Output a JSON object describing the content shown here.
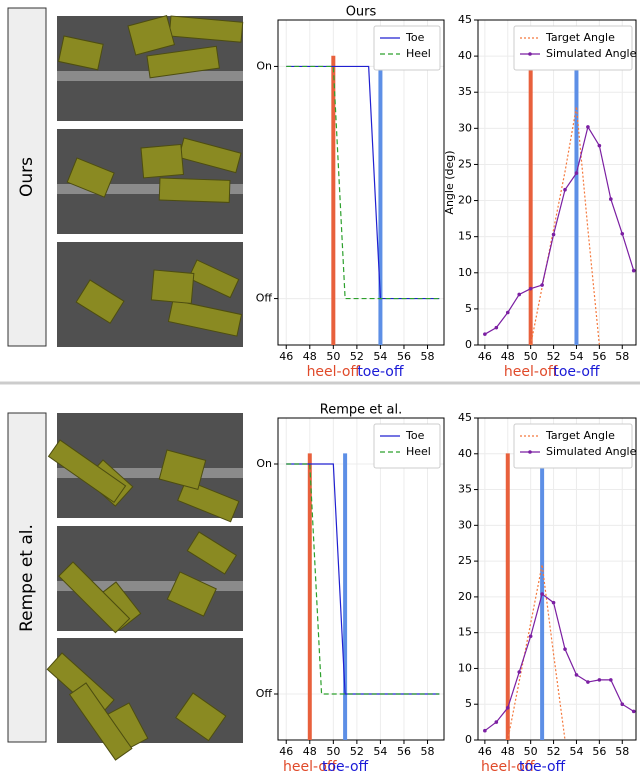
{
  "row_labels": [
    "Ours",
    "Rempe et al."
  ],
  "chart_data": [
    {
      "type": "line",
      "title": "Ours",
      "x": [
        46,
        47,
        48,
        49,
        50,
        51,
        52,
        53,
        54,
        55,
        56,
        57,
        58,
        59
      ],
      "xlim": [
        45.3,
        59.4
      ],
      "xticks": [
        46,
        48,
        50,
        52,
        54,
        56,
        58
      ],
      "ylim": [
        -0.2,
        1.2
      ],
      "yticks": [
        {
          "value": 0,
          "label": "Off"
        },
        {
          "value": 1,
          "label": "On"
        }
      ],
      "grid": true,
      "legend": "upper right",
      "series": [
        {
          "name": "Toe",
          "color": "#2020d0",
          "style": "solid",
          "values": [
            1,
            1,
            1,
            1,
            1,
            1,
            1,
            1,
            0,
            0,
            0,
            0,
            0,
            0
          ]
        },
        {
          "name": "Heel",
          "color": "#2ca02c",
          "style": "dashed",
          "values": [
            1,
            1,
            1,
            1,
            1,
            0,
            0,
            0,
            0,
            0,
            0,
            0,
            0,
            0
          ]
        }
      ],
      "vlines": [
        {
          "x": 50,
          "label": "heel-off",
          "color": "#e8603c",
          "label_color": "#e04a2a"
        },
        {
          "x": 54,
          "label": "toe-off",
          "color": "#5d8fe6",
          "label_color": "#1a1ad6"
        }
      ]
    },
    {
      "type": "line",
      "x": [
        46,
        47,
        48,
        49,
        50,
        51,
        52,
        53,
        54,
        55,
        56,
        57,
        58,
        59
      ],
      "xlim": [
        45.4,
        59.2
      ],
      "xticks": [
        46,
        48,
        50,
        52,
        54,
        56,
        58
      ],
      "ylim": [
        0,
        45
      ],
      "yticks": [
        0,
        5,
        10,
        15,
        20,
        25,
        30,
        35,
        40,
        45
      ],
      "ylabel": "Angle (deg)",
      "grid": true,
      "legend": "upper right",
      "series": [
        {
          "name": "Target Angle",
          "color": "#f4783c",
          "style": "dotted",
          "values": [
            null,
            null,
            null,
            null,
            0,
            8,
            16,
            24,
            33,
            16,
            0,
            null,
            null,
            null
          ]
        },
        {
          "name": "Simulated Angle",
          "color": "#7b1fa2",
          "style": "solid",
          "marker": true,
          "values": [
            1.5,
            2.4,
            4.5,
            7.0,
            7.8,
            8.3,
            15.3,
            21.5,
            23.8,
            30.2,
            27.6,
            20.2,
            15.4,
            10.3
          ]
        }
      ],
      "vlines": [
        {
          "x": 50,
          "label": "heel-off",
          "color": "#e8603c",
          "label_color": "#e04a2a"
        },
        {
          "x": 54,
          "label": "toe-off",
          "color": "#5d8fe6",
          "label_color": "#1a1ad6"
        }
      ]
    },
    {
      "type": "line",
      "title": "Rempe et al.",
      "x": [
        46,
        47,
        48,
        49,
        50,
        51,
        52,
        53,
        54,
        55,
        56,
        57,
        58,
        59
      ],
      "xlim": [
        45.3,
        59.4
      ],
      "xticks": [
        46,
        48,
        50,
        52,
        54,
        56,
        58
      ],
      "ylim": [
        -0.2,
        1.2
      ],
      "yticks": [
        {
          "value": 0,
          "label": "Off"
        },
        {
          "value": 1,
          "label": "On"
        }
      ],
      "grid": true,
      "legend": "upper right",
      "series": [
        {
          "name": "Toe",
          "color": "#2020d0",
          "style": "solid",
          "values": [
            1,
            1,
            1,
            1,
            1,
            0,
            0,
            0,
            0,
            0,
            0,
            0,
            0,
            0
          ]
        },
        {
          "name": "Heel",
          "color": "#2ca02c",
          "style": "dashed",
          "values": [
            1,
            1,
            1,
            0,
            0,
            0,
            0,
            0,
            0,
            0,
            0,
            0,
            0,
            0
          ]
        }
      ],
      "vlines": [
        {
          "x": 48,
          "label": "heel-off",
          "color": "#e8603c",
          "label_color": "#e04a2a"
        },
        {
          "x": 51,
          "label": "toe-off",
          "color": "#5d8fe6",
          "label_color": "#1a1ad6"
        }
      ]
    },
    {
      "type": "line",
      "x": [
        46,
        47,
        48,
        49,
        50,
        51,
        52,
        53,
        54,
        55,
        56,
        57,
        58,
        59
      ],
      "xlim": [
        45.4,
        59.2
      ],
      "xticks": [
        46,
        48,
        50,
        52,
        54,
        56,
        58
      ],
      "ylim": [
        0,
        45
      ],
      "yticks": [
        0,
        5,
        10,
        15,
        20,
        25,
        30,
        35,
        40,
        45
      ],
      "grid": true,
      "legend": "upper right",
      "series": [
        {
          "name": "Target Angle",
          "color": "#f4783c",
          "style": "dotted",
          "values": [
            null,
            null,
            0,
            8.2,
            16.3,
            24.5,
            12,
            0,
            null,
            null,
            null,
            null,
            null,
            null
          ]
        },
        {
          "name": "Simulated Angle",
          "color": "#7b1fa2",
          "style": "solid",
          "marker": true,
          "values": [
            1.3,
            2.5,
            4.5,
            9.5,
            14.5,
            20.4,
            19.2,
            12.7,
            9.1,
            8.1,
            8.4,
            8.4,
            5.0,
            4.0
          ]
        }
      ],
      "vlines": [
        {
          "x": 48,
          "label": "heel-off",
          "color": "#e8603c",
          "label_color": "#e04a2a"
        },
        {
          "x": 51,
          "label": "toe-off",
          "color": "#5d8fe6",
          "label_color": "#1a1ad6"
        }
      ]
    }
  ]
}
